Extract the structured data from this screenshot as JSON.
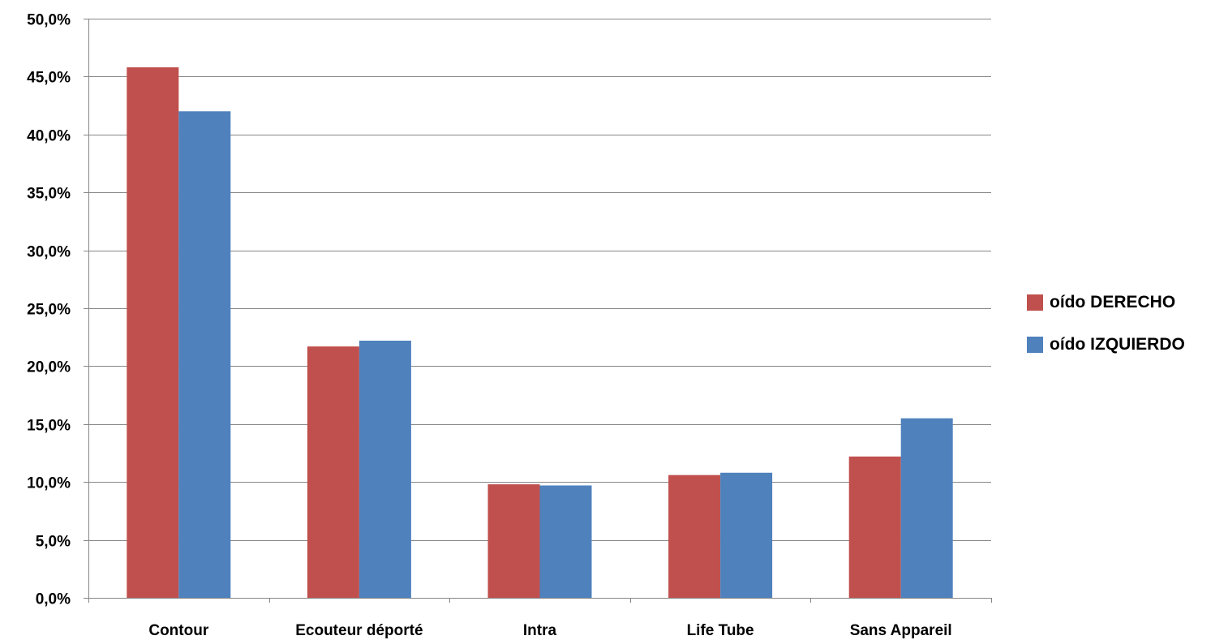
{
  "chart_data": {
    "type": "bar",
    "categories": [
      "Contour",
      "Ecouteur déporté",
      "Intra",
      "Life Tube",
      "Sans Appareil"
    ],
    "series": [
      {
        "name": "oído DERECHO",
        "color": "#c0504d",
        "values": [
          45.8,
          21.7,
          9.8,
          10.6,
          12.2
        ]
      },
      {
        "name": "oído IZQUIERDO",
        "color": "#4f81bd",
        "values": [
          42.0,
          22.2,
          9.7,
          10.8,
          15.5
        ]
      }
    ],
    "y_ticks": [
      "0,0%",
      "5,0%",
      "10,0%",
      "15,0%",
      "20,0%",
      "25,0%",
      "30,0%",
      "35,0%",
      "40,0%",
      "45,0%",
      "50,0%"
    ],
    "ylim": [
      0,
      50
    ],
    "y_unit": "%",
    "title": "",
    "xlabel": "",
    "ylabel": "",
    "grid": true,
    "legend_position": "right"
  }
}
